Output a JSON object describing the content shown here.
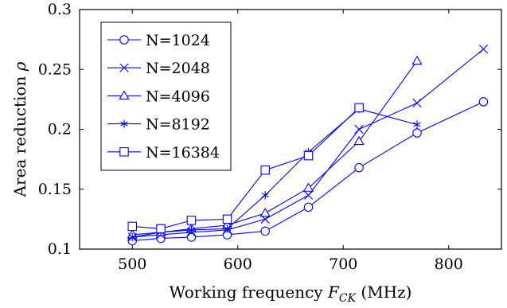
{
  "chart_data": {
    "type": "line",
    "title": "",
    "xlabel": "Working frequency F_CK (MHz)",
    "xlabel_parts": {
      "prefix": "Working frequency ",
      "symbol": "F",
      "subscript": "CK",
      "suffix": " (MHz)"
    },
    "ylabel": "Area reduction ρ",
    "ylabel_parts": {
      "prefix": "Area reduction ",
      "symbol": "ρ"
    },
    "xlim": [
      450,
      850
    ],
    "ylim": [
      0.1,
      0.3
    ],
    "xticks": [
      500,
      600,
      700,
      800
    ],
    "xtick_labels": [
      "500",
      "600",
      "700",
      "800"
    ],
    "yticks": [
      0.1,
      0.15,
      0.2,
      0.25,
      0.3
    ],
    "ytick_labels": [
      "0.1",
      "0.15",
      "0.2",
      "0.25",
      "0.3"
    ],
    "grid": false,
    "legend_position": "top-left",
    "line_color": "#0000ff",
    "series": [
      {
        "name": "N=1024",
        "marker": "circle",
        "x": [
          500,
          527,
          556,
          590,
          626,
          667,
          715,
          770,
          833
        ],
        "y": [
          0.107,
          0.109,
          0.11,
          0.112,
          0.115,
          0.135,
          0.168,
          0.197,
          0.223
        ]
      },
      {
        "name": "N=2048",
        "marker": "x",
        "x": [
          500,
          527,
          556,
          590,
          626,
          667,
          715,
          770,
          833
        ],
        "y": [
          0.11,
          0.112,
          0.114,
          0.116,
          0.125,
          0.145,
          0.2,
          0.222,
          0.267
        ]
      },
      {
        "name": "N=4096",
        "marker": "triangle",
        "x": [
          500,
          527,
          556,
          590,
          626,
          667,
          715,
          770
        ],
        "y": [
          0.112,
          0.114,
          0.117,
          0.12,
          0.13,
          0.151,
          0.19,
          0.257
        ]
      },
      {
        "name": "N=8192",
        "marker": "star",
        "x": [
          500,
          527,
          556,
          590,
          626,
          667,
          715,
          770
        ],
        "y": [
          0.11,
          0.114,
          0.116,
          0.117,
          0.145,
          0.181,
          0.217,
          0.204
        ]
      },
      {
        "name": "N=16384",
        "marker": "square",
        "x": [
          500,
          527,
          556,
          590,
          626,
          667,
          715
        ],
        "y": [
          0.119,
          0.117,
          0.124,
          0.125,
          0.166,
          0.178,
          0.218
        ]
      }
    ]
  }
}
